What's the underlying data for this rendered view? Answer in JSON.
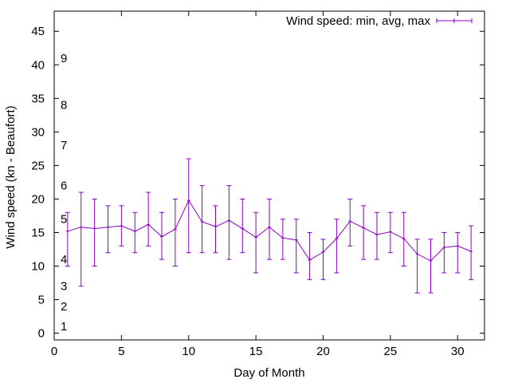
{
  "chart_data": {
    "type": "line",
    "xlabel": "Day of Month",
    "ylabel": "Wind speed (kn - Beaufort)",
    "xlim": [
      0,
      32
    ],
    "ylim": [
      -1,
      48
    ],
    "xticks": [
      0,
      5,
      10,
      15,
      20,
      25,
      30
    ],
    "yticks": [
      0,
      5,
      10,
      15,
      20,
      25,
      30,
      35,
      40,
      45
    ],
    "grid": false,
    "legend_position": "top-right",
    "series": [
      {
        "name": "Wind speed: min, avg, max",
        "color": "#8b00c8",
        "x": [
          1,
          2,
          3,
          4,
          5,
          6,
          7,
          8,
          9,
          10,
          11,
          12,
          13,
          14,
          15,
          16,
          17,
          18,
          19,
          20,
          21,
          22,
          23,
          24,
          25,
          26,
          27,
          28,
          29,
          30,
          31
        ],
        "avg": [
          15.2,
          15.8,
          15.6,
          15.8,
          16.0,
          15.2,
          16.2,
          14.4,
          15.5,
          19.8,
          16.6,
          15.9,
          16.8,
          15.6,
          14.3,
          15.8,
          14.2,
          13.9,
          10.9,
          12.1,
          14.1,
          16.7,
          15.7,
          14.7,
          15.1,
          14.1,
          11.8,
          10.8,
          12.8,
          13.0,
          12.2
        ],
        "min": [
          10,
          7,
          10,
          12,
          13,
          12,
          13,
          11,
          10,
          12,
          12,
          12,
          11,
          12,
          9,
          11,
          11,
          9,
          8,
          8,
          9,
          13,
          11,
          11,
          12,
          10,
          6,
          6,
          9,
          9,
          8
        ],
        "max": [
          18,
          21,
          20,
          19,
          19,
          18,
          21,
          18,
          20,
          26,
          22,
          19,
          22,
          20,
          18,
          20,
          17,
          17,
          15,
          14,
          17,
          20,
          19,
          18,
          18,
          18,
          14,
          14,
          15,
          15,
          16
        ]
      }
    ],
    "annotations": [
      {
        "text": "1",
        "y": 1
      },
      {
        "text": "2",
        "y": 4
      },
      {
        "text": "3",
        "y": 7
      },
      {
        "text": "4",
        "y": 11
      },
      {
        "text": "5",
        "y": 17
      },
      {
        "text": "6",
        "y": 22
      },
      {
        "text": "7",
        "y": 28
      },
      {
        "text": "8",
        "y": 34
      },
      {
        "text": "9",
        "y": 41
      }
    ]
  }
}
